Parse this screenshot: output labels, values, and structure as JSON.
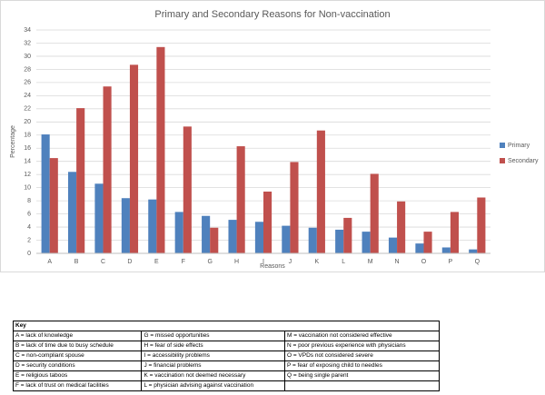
{
  "chart_data": {
    "type": "bar",
    "title": "Primary and Secondary Reasons for Non-vaccination",
    "x_label": "Reasons",
    "y_label": "Percentage",
    "categories": [
      "A",
      "B",
      "C",
      "D",
      "E",
      "F",
      "G",
      "H",
      "I",
      "J",
      "K",
      "L",
      "M",
      "N",
      "O",
      "P",
      "Q"
    ],
    "series": [
      {
        "name": "Primary",
        "color": "#4f81bd",
        "values": [
          18.1,
          12.4,
          10.6,
          8.4,
          8.2,
          6.3,
          5.7,
          5.1,
          4.8,
          4.2,
          3.9,
          3.6,
          3.3,
          2.4,
          1.5,
          0.9,
          0.6
        ]
      },
      {
        "name": "Secondary",
        "color": "#c0504d",
        "values": [
          14.5,
          22.1,
          25.4,
          28.7,
          31.4,
          19.3,
          3.9,
          16.3,
          9.4,
          13.9,
          18.7,
          5.4,
          12.1,
          7.9,
          3.3,
          6.3,
          8.5
        ]
      }
    ],
    "ylim": [
      0,
      34
    ],
    "yticks": [
      0,
      2,
      4,
      6,
      8,
      10,
      12,
      14,
      16,
      18,
      20,
      22,
      24,
      26,
      28,
      30,
      32,
      34
    ],
    "grid": true,
    "legend": "right"
  },
  "key": {
    "title": "Key",
    "rows": [
      [
        "A =  lack of knowledge",
        "G = missed opportunities",
        "M = vaccination not considered effective"
      ],
      [
        "B = lack of time due to busy schedule",
        "H = fear of side effects",
        "N = poor previous experience with physicians"
      ],
      [
        "C = non-compliant spouse",
        "I = accessibility problems",
        "O = VPDs not considered severe"
      ],
      [
        "D = security conditions",
        "J = financial problems",
        "P = fear of exposing child to needles"
      ],
      [
        "E = religious taboos",
        "K = vaccination not deemed necessary",
        "Q = being single parent"
      ],
      [
        "F = lack of trust on medical facilities",
        "L = physician advising against vaccination"
      ]
    ]
  }
}
